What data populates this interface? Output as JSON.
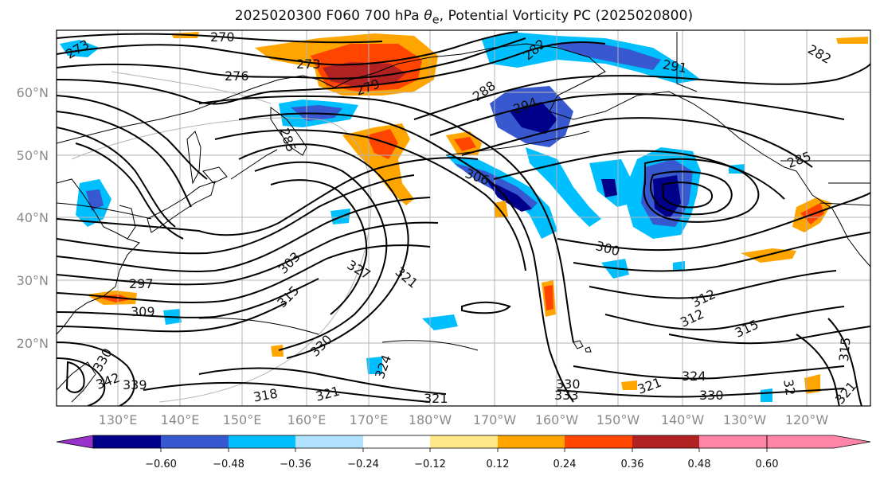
{
  "title": {
    "prefix": "2025020300 F060 700 hPa ",
    "theta_symbol": "θ",
    "theta_sub": "e",
    "suffix": ", Potential Vorticity PC (2025020800)"
  },
  "latitude_labels": [
    "60°N",
    "50°N",
    "40°N",
    "30°N",
    "20°N"
  ],
  "longitude_labels": [
    "130°E",
    "140°E",
    "150°E",
    "160°E",
    "170°E",
    "180°W",
    "170°W",
    "160°W",
    "150°W",
    "140°W",
    "130°W",
    "120°W"
  ],
  "contour_labels": [
    "273",
    "270",
    "273",
    "276",
    "279",
    "282",
    "288",
    "291",
    "294",
    "282",
    "285",
    "285",
    "306",
    "300",
    "303",
    "297",
    "309",
    "315",
    "327",
    "321",
    "312",
    "312",
    "315",
    "330",
    "324",
    "321",
    "324",
    "318",
    "321",
    "330",
    "333",
    "330",
    "339",
    "342",
    "330",
    "321",
    "315",
    "321",
    "32"
  ],
  "colorbar": {
    "bins": [
      "#9932cc",
      "#00008b",
      "#3758cf",
      "#00bfff",
      "#b0e2ff",
      "#ffffff",
      "#ffe88a",
      "#ffa500",
      "#ff4500",
      "#b22222",
      "#ff85a8"
    ],
    "tick_labels": [
      "−0.60",
      "−0.48",
      "−0.36",
      "−0.24",
      "−0.12",
      "0.12",
      "0.24",
      "0.36",
      "0.48",
      "0.60"
    ]
  },
  "colors": {
    "contour": "#000000",
    "grid": "#b4b4b4",
    "coastline": "#000000",
    "axis_label": "#8a8a8a"
  }
}
